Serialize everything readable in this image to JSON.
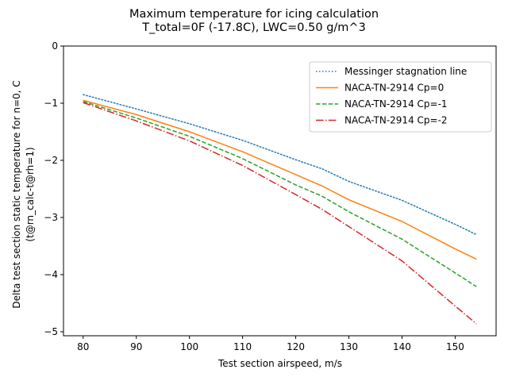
{
  "chart_data": {
    "type": "line",
    "title": [
      "Maximum temperature for icing calculation",
      "T_total=0F (-17.8C), LWC=0.50 g/m^3"
    ],
    "xlabel": "Test section airspeed, m/s",
    "ylabel": [
      "Delta test section static temperature for n=0, C",
      "(t@rn_calc-t@rh=1)"
    ],
    "xlim": [
      76.3,
      157.7
    ],
    "ylim": [
      -5.07,
      0
    ],
    "xticks": [
      80,
      90,
      100,
      110,
      120,
      130,
      140,
      150
    ],
    "yticks": [
      0,
      -1,
      -2,
      -3,
      -4,
      -5
    ],
    "grid": false,
    "legend_position": "top-right",
    "series": [
      {
        "name": "Messinger stagnation line",
        "color": "#1f77b4",
        "style": "dotted",
        "x": [
          80,
          90,
          100,
          110,
          120,
          125,
          130,
          140,
          150,
          154
        ],
        "y": [
          -0.85,
          -1.1,
          -1.36,
          -1.65,
          -1.99,
          -2.15,
          -2.37,
          -2.7,
          -3.12,
          -3.3
        ]
      },
      {
        "name": "NACA-TN-2914 Cp=0",
        "color": "#ff7f0e",
        "style": "solid",
        "x": [
          80,
          90,
          100,
          110,
          120,
          125,
          130,
          140,
          150,
          154
        ],
        "y": [
          -0.95,
          -1.2,
          -1.5,
          -1.85,
          -2.25,
          -2.45,
          -2.69,
          -3.07,
          -3.55,
          -3.73
        ]
      },
      {
        "name": "NACA-TN-2914 Cp=-1",
        "color": "#2ca02c",
        "style": "dashed",
        "x": [
          80,
          90,
          100,
          110,
          120,
          125,
          130,
          140,
          150,
          154
        ],
        "y": [
          -0.97,
          -1.26,
          -1.58,
          -1.97,
          -2.43,
          -2.63,
          -2.9,
          -3.38,
          -3.97,
          -4.21
        ]
      },
      {
        "name": "NACA-TN-2914 Cp=-2",
        "color": "#d62728",
        "style": "dashdot",
        "x": [
          80,
          90,
          100,
          110,
          120,
          125,
          130,
          140,
          150,
          154
        ],
        "y": [
          -0.99,
          -1.31,
          -1.66,
          -2.09,
          -2.6,
          -2.86,
          -3.16,
          -3.76,
          -4.55,
          -4.86
        ]
      }
    ]
  }
}
